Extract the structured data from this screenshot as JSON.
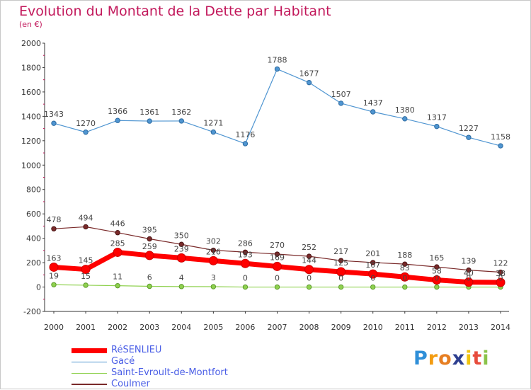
{
  "header": {
    "title": "Evolution du Montant de la Dette par Habitant",
    "subtitle": "(en €)"
  },
  "chart_data": {
    "type": "line",
    "title": "Evolution du Montant de la Dette par Habitant",
    "ylabel": "(en €)",
    "xlabel": "",
    "x": [
      "2000",
      "2001",
      "2002",
      "2003",
      "2004",
      "2005",
      "2006",
      "2007",
      "2008",
      "2009",
      "2010",
      "2011",
      "2012",
      "2013",
      "2014"
    ],
    "ylim": [
      -200,
      2000
    ],
    "yticks": [
      "-200",
      "0",
      "200",
      "400",
      "600",
      "800",
      "1000",
      "1200",
      "1400",
      "1600",
      "1800",
      "2000"
    ],
    "grid": false,
    "legend_position": "bottom-left",
    "series": [
      {
        "name": "RéSENLIEU",
        "color": "#ff0000",
        "values": [
          163,
          145,
          285,
          259,
          239,
          216,
          193,
          169,
          144,
          125,
          107,
          83,
          58,
          40,
          38
        ],
        "labels": [
          "163",
          "145",
          "285",
          "259",
          "239",
          "216",
          "193",
          "169",
          "144",
          "125",
          "107",
          "83",
          "58",
          "40",
          "38"
        ]
      },
      {
        "name": "Gacé",
        "color": "#4f95d1",
        "values": [
          1343,
          1270,
          1366,
          1361,
          1362,
          1271,
          1176,
          1788,
          1677,
          1507,
          1437,
          1380,
          1317,
          1227,
          1158
        ],
        "labels": [
          "1343",
          "1270",
          "1366",
          "1361",
          "1362",
          "1271",
          "1176",
          "1788",
          "1677",
          "1507",
          "1437",
          "1380",
          "1317",
          "1227",
          "1158"
        ]
      },
      {
        "name": "Saint-Evroult-de-Montfort",
        "color": "#8fd14f",
        "values": [
          19,
          15,
          11,
          6,
          4,
          3,
          0,
          0,
          0,
          0,
          0,
          0,
          0,
          0,
          0
        ],
        "labels": [
          "19",
          "15",
          "11",
          "6",
          "4",
          "3",
          "0",
          "0",
          "0",
          "0",
          "0",
          "0",
          "0",
          "0",
          "0"
        ]
      },
      {
        "name": "Coulmer",
        "color": "#7a2a2a",
        "values": [
          478,
          494,
          446,
          395,
          350,
          302,
          286,
          270,
          252,
          217,
          201,
          188,
          165,
          139,
          122
        ],
        "labels": [
          "478",
          "494",
          "446",
          "395",
          "350",
          "302",
          "286",
          "270",
          "252",
          "217",
          "201",
          "188",
          "165",
          "139",
          "122"
        ]
      }
    ]
  },
  "logo": {
    "letters": [
      "P",
      "r",
      "o",
      "x",
      "i",
      "t",
      "i"
    ],
    "colors": [
      "#2f8fd8",
      "#f39c12",
      "#e67e22",
      "#2c3e8f",
      "#f1c40f",
      "#e74c3c",
      "#8bc34a"
    ]
  }
}
